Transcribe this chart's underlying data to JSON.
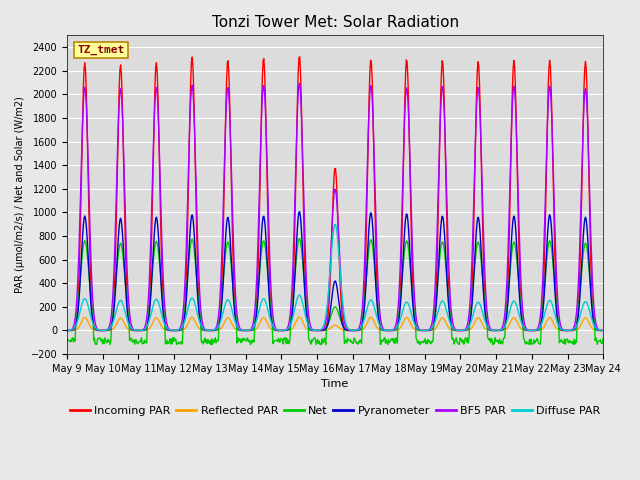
{
  "title": "Tonzi Tower Met: Solar Radiation",
  "ylabel": "PAR (μmol/m2/s) / Net and Solar (W/m2)",
  "xlabel": "Time",
  "watermark": "TZ_tmet",
  "ylim": [
    -200,
    2500
  ],
  "yticks": [
    -200,
    0,
    200,
    400,
    600,
    800,
    1000,
    1200,
    1400,
    1600,
    1800,
    2000,
    2200,
    2400
  ],
  "date_start": 9,
  "date_end": 24,
  "num_days": 15,
  "series": {
    "incoming_par": {
      "label": "Incoming PAR",
      "color": "#FF0000",
      "lw": 1.0
    },
    "reflected_par": {
      "label": "Reflected PAR",
      "color": "#FFA500",
      "lw": 1.0
    },
    "net": {
      "label": "Net",
      "color": "#00CC00",
      "lw": 1.0
    },
    "pyranometer": {
      "label": "Pyranometer",
      "color": "#0000CC",
      "lw": 1.0
    },
    "bf5_par": {
      "label": "BF5 PAR",
      "color": "#AA00FF",
      "lw": 1.0
    },
    "diffuse_par": {
      "label": "Diffuse PAR",
      "color": "#00CCCC",
      "lw": 1.0
    }
  },
  "fig_bg_color": "#E8E8E8",
  "plot_bg_color": "#DCDCDC",
  "grid_color": "#FFFFFF",
  "title_fontsize": 11,
  "tick_fontsize": 7,
  "legend_fontsize": 8
}
